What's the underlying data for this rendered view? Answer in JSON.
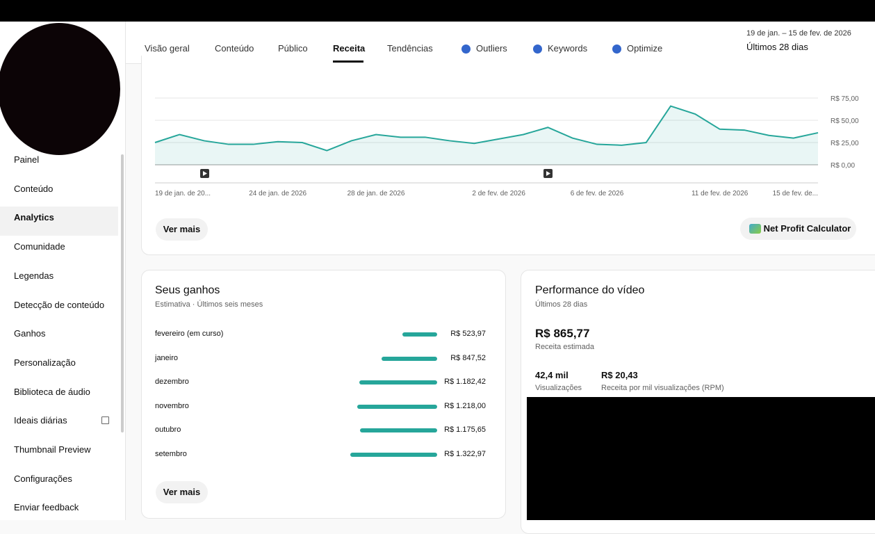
{
  "tabs": [
    "Visão geral",
    "Conteúdo",
    "Público",
    "Receita",
    "Tendências",
    "Outliers",
    "Keywords",
    "Optimize"
  ],
  "active_tab": 3,
  "date_range": {
    "dates": "19 de jan. – 15 de fev. de 2026",
    "period": "Últimos 28 dias"
  },
  "sidebar": [
    "Painel",
    "Conteúdo",
    "Analytics",
    "Comunidade",
    "Legendas",
    "Detecção de conteúdo",
    "Ganhos",
    "Personalização",
    "Biblioteca de áudio",
    "Ideais diárias",
    "Thumbnail Preview",
    "Configurações",
    "Enviar feedback"
  ],
  "active_item": 2,
  "revenue_chart": {
    "type": "line",
    "color": "#26a69a",
    "categories": [
      "19 de jan. de 20...",
      null,
      null,
      null,
      null,
      "24 de jan. de 2026",
      null,
      null,
      null,
      "28 de jan. de 2026",
      null,
      null,
      null,
      null,
      "2 de fev. de 2026",
      null,
      null,
      null,
      "6 de fev. de 2026",
      null,
      null,
      null,
      null,
      "11 de fev. de 2026",
      null,
      null,
      null,
      "15 de fev. de..."
    ],
    "values": [
      25,
      34,
      27,
      23,
      23,
      26,
      25,
      16,
      27,
      34,
      31,
      31,
      27,
      24,
      29,
      34,
      42,
      30,
      23,
      22,
      25,
      66,
      57,
      40,
      39,
      33,
      30,
      36
    ],
    "ylim": [
      0,
      75
    ],
    "yticks": [
      {
        "value": 0,
        "label": "R$ 0,00"
      },
      {
        "value": 25,
        "label": "R$ 25,00"
      },
      {
        "value": 50,
        "label": "R$ 50,00"
      },
      {
        "value": 75,
        "label": "R$ 75,00"
      }
    ],
    "button": "Ver mais",
    "calculator": "Net Profit Calculator"
  },
  "earnings": {
    "title": "Seus ganhos",
    "subtitle": "Estimativa · Últimos seis meses",
    "color": "#26a69a",
    "rows": [
      {
        "month": "fevereiro (em curso)",
        "value": 523.97,
        "label": "R$ 523,97"
      },
      {
        "month": "janeiro",
        "value": 847.52,
        "label": "R$ 847,52"
      },
      {
        "month": "dezembro",
        "value": 1182.42,
        "label": "R$ 1.182,42"
      },
      {
        "month": "novembro",
        "value": 1218.0,
        "label": "R$ 1.218,00"
      },
      {
        "month": "outubro",
        "value": 1175.65,
        "label": "R$ 1.175,65"
      },
      {
        "month": "setembro",
        "value": 1322.97,
        "label": "R$ 1.322,97"
      }
    ],
    "button": "Ver mais"
  },
  "performance": {
    "title": "Performance do vídeo",
    "subtitle": "Últimos 28 dias",
    "revenue": "R$ 865,77",
    "revenue_label": "Receita estimada",
    "views": "42,4 mil",
    "views_label": "Visualizações",
    "rpm": "R$ 20,43",
    "rpm_label": "Receita por mil visualizações (RPM)"
  }
}
